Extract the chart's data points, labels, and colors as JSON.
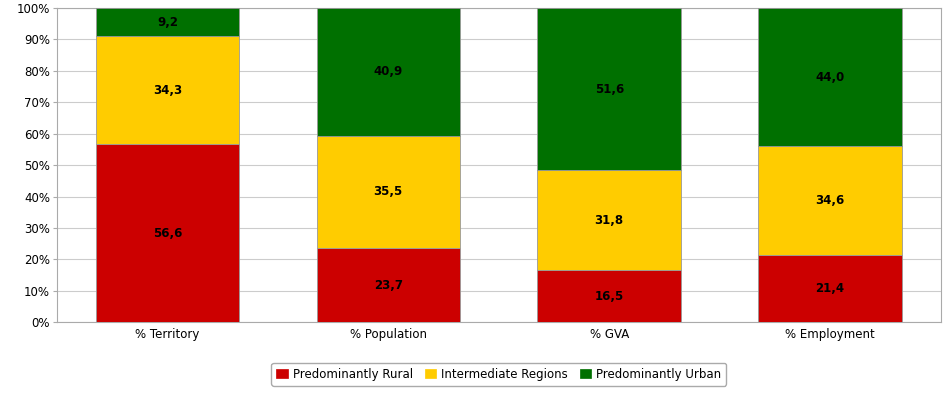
{
  "categories": [
    "% Territory",
    "% Population",
    "% GVA",
    "% Employment"
  ],
  "series": [
    {
      "label": "Predominantly Rural",
      "color": "#CC0000",
      "values": [
        56.6,
        23.7,
        16.5,
        21.4
      ]
    },
    {
      "label": "Intermediate Regions",
      "color": "#FFCC00",
      "values": [
        34.3,
        35.5,
        31.8,
        34.6
      ]
    },
    {
      "label": "Predominantly Urban",
      "color": "#007000",
      "values": [
        9.2,
        40.9,
        51.6,
        44.0
      ]
    }
  ],
  "ylim": [
    0,
    100
  ],
  "yticks": [
    0,
    10,
    20,
    30,
    40,
    50,
    60,
    70,
    80,
    90,
    100
  ],
  "ytick_labels": [
    "0%",
    "10%",
    "20%",
    "30%",
    "40%",
    "50%",
    "60%",
    "70%",
    "80%",
    "90%",
    "100%"
  ],
  "bar_width": 0.65,
  "edge_color": "#999999",
  "label_fontsize": 8.5,
  "tick_fontsize": 8.5,
  "legend_fontsize": 8.5,
  "background_color": "#ffffff",
  "grid_color": "#cccccc",
  "spine_color": "#aaaaaa"
}
